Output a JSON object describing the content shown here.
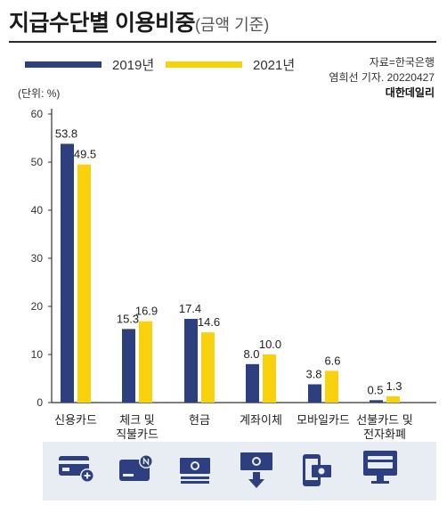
{
  "title": "지급수단별 이용비중",
  "title_note": "(금액 기준)",
  "legend": [
    {
      "label": "2019년",
      "color": "#2e3f7f"
    },
    {
      "label": "2021년",
      "color": "#f9d10d"
    }
  ],
  "source": {
    "line1": "자료=한국은행",
    "line2": "염희선 기자. 20220427",
    "brand": "대한데일리"
  },
  "unit_label": "(단위: %)",
  "chart_data": {
    "type": "bar",
    "categories": [
      [
        "신용카드"
      ],
      [
        "체크 및",
        "직불카드"
      ],
      [
        "현금"
      ],
      [
        "계좌이체"
      ],
      [
        "모바일카드"
      ],
      [
        "선불카드 및",
        "전자화폐"
      ]
    ],
    "series": [
      {
        "name": "2019년",
        "color": "#2e3f7f",
        "values": [
          53.8,
          15.3,
          17.4,
          8.0,
          3.8,
          0.5
        ],
        "labels": [
          "53.8",
          "15.3",
          "17.4",
          "8.0",
          "3.8",
          "0.5"
        ]
      },
      {
        "name": "2021년",
        "color": "#f9d10d",
        "values": [
          49.5,
          16.9,
          14.6,
          10.0,
          6.6,
          1.3
        ],
        "labels": [
          "49.5",
          "16.9",
          "14.6",
          "10.0",
          "6.6",
          "1.3"
        ]
      }
    ],
    "ylim": [
      0,
      60
    ],
    "yticks": [
      0,
      10,
      20,
      30,
      40,
      50,
      60
    ],
    "grid": false
  },
  "icons": [
    {
      "name": "credit-card-add-icon",
      "color": "#2e3f7f"
    },
    {
      "name": "debit-card-icon",
      "color": "#2e3f7f"
    },
    {
      "name": "cash-icon",
      "color": "#2e3f7f"
    },
    {
      "name": "transfer-icon",
      "color": "#2e3f7f"
    },
    {
      "name": "mobile-payment-icon",
      "color": "#2e3f7f"
    },
    {
      "name": "e-money-monitor-icon",
      "color": "#2e3f7f"
    }
  ]
}
